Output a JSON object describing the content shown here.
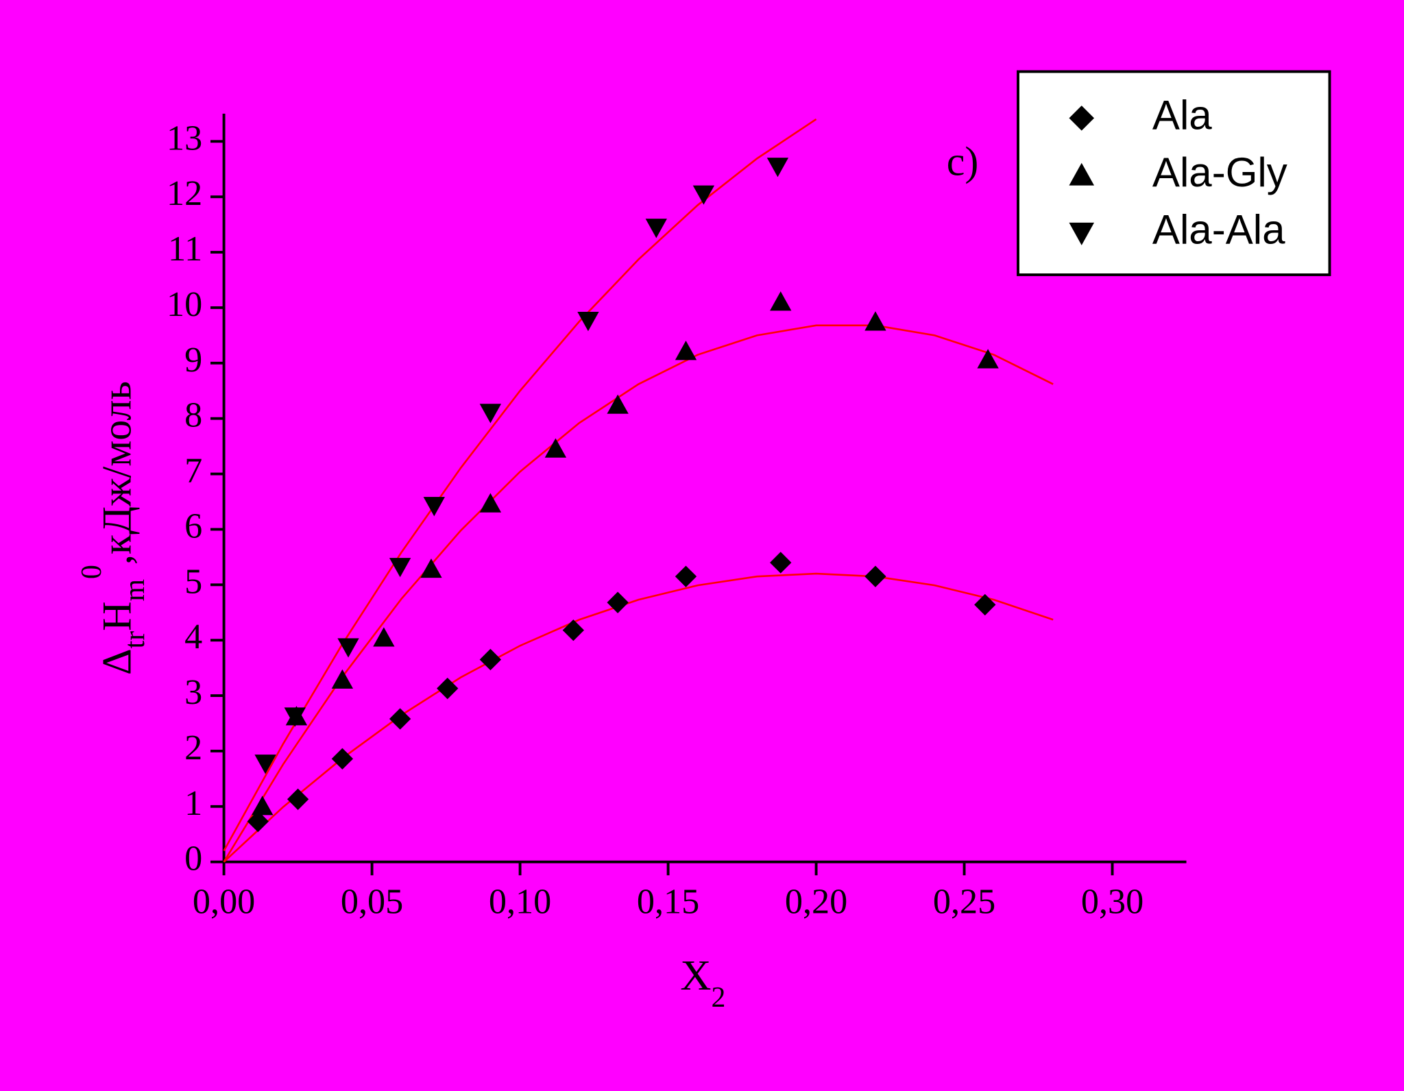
{
  "chart_data": {
    "type": "scatter",
    "annotation": "c)",
    "x_label": {
      "text": "X",
      "sub": "2"
    },
    "y_label": {
      "delta": "Δ",
      "sub1": "tr",
      "symbol": "H",
      "sub2": "m",
      "sup": "0",
      "unit": ",кДж/моль"
    },
    "xlim": [
      0,
      0.325
    ],
    "ylim": [
      0,
      13.5
    ],
    "xticks": [
      {
        "value": 0,
        "label": "0,00"
      },
      {
        "value": 0.05,
        "label": "0,05"
      },
      {
        "value": 0.1,
        "label": "0,10"
      },
      {
        "value": 0.15,
        "label": "0,15"
      },
      {
        "value": 0.2,
        "label": "0,20"
      },
      {
        "value": 0.25,
        "label": "0,25"
      },
      {
        "value": 0.3,
        "label": "0,30"
      }
    ],
    "yticks": [
      0,
      1,
      2,
      3,
      4,
      5,
      6,
      7,
      8,
      9,
      10,
      11,
      12,
      13
    ],
    "legend": "top-right",
    "series": [
      {
        "name": "Ala",
        "color": "#000000",
        "marker": "diamond",
        "x": [
          0.0115,
          0.025,
          0.04,
          0.0595,
          0.0755,
          0.09,
          0.118,
          0.133,
          0.156,
          0.188,
          0.22,
          0.257
        ],
        "values": [
          0.73,
          1.13,
          1.86,
          2.58,
          3.13,
          3.65,
          4.18,
          4.68,
          5.15,
          5.4,
          5.15,
          4.64
        ]
      },
      {
        "name": "Ala-Gly",
        "color": "#000000",
        "marker": "triangle-up",
        "x": [
          0.013,
          0.0245,
          0.04,
          0.054,
          0.07,
          0.09,
          0.112,
          0.133,
          0.156,
          0.188,
          0.22,
          0.258
        ],
        "values": [
          1.0,
          2.62,
          3.28,
          4.04,
          5.28,
          6.46,
          7.45,
          8.24,
          9.21,
          10.1,
          9.74,
          9.06
        ]
      },
      {
        "name": "Ala-Ala",
        "color": "#000000",
        "marker": "triangle-down",
        "x": [
          0.014,
          0.024,
          0.042,
          0.0595,
          0.071,
          0.09,
          0.123,
          0.146,
          0.162,
          0.187
        ],
        "values": [
          1.78,
          2.63,
          3.88,
          5.33,
          6.43,
          8.11,
          9.77,
          11.45,
          12.05,
          12.55
        ]
      }
    ],
    "fits": [
      {
        "color": "#ff0000",
        "x": [
          0,
          0.02,
          0.04,
          0.06,
          0.08,
          0.1,
          0.12,
          0.14,
          0.16,
          0.18,
          0.2,
          0.22,
          0.24,
          0.26,
          0.28
        ],
        "values": [
          0,
          0.99,
          1.87,
          2.65,
          3.33,
          3.9,
          4.37,
          4.73,
          4.99,
          5.15,
          5.2,
          5.15,
          4.99,
          4.73,
          4.37
        ]
      },
      {
        "color": "#ff0000",
        "x": [
          0,
          0.02,
          0.04,
          0.06,
          0.08,
          0.1,
          0.12,
          0.14,
          0.16,
          0.18,
          0.2,
          0.22,
          0.24,
          0.26,
          0.28
        ],
        "values": [
          0,
          1.76,
          3.34,
          4.75,
          5.98,
          7.04,
          7.92,
          8.62,
          9.15,
          9.5,
          9.68,
          9.68,
          9.5,
          9.15,
          8.62
        ]
      },
      {
        "color": "#ff0000",
        "x": [
          0,
          0.02,
          0.04,
          0.06,
          0.08,
          0.1,
          0.12,
          0.14,
          0.16,
          0.18,
          0.2
        ],
        "values": [
          0.2,
          2.13,
          3.93,
          5.59,
          7.11,
          8.5,
          9.75,
          10.87,
          11.85,
          12.69,
          13.4
        ]
      }
    ]
  }
}
